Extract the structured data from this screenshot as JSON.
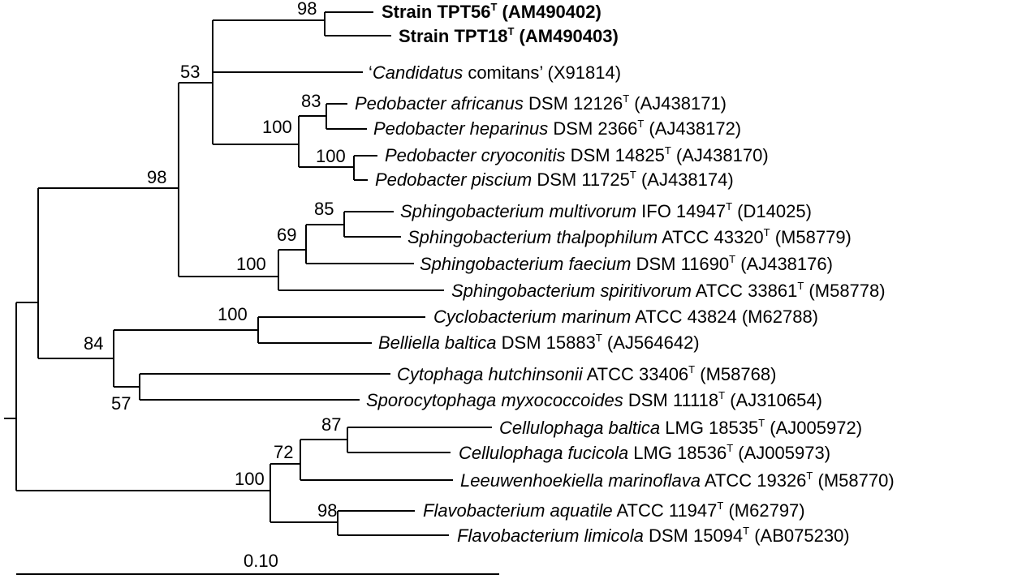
{
  "figure": {
    "scale_bar_label": "0.10",
    "taxa": [
      {
        "id": "tpt56",
        "bold": true,
        "parts": [
          {
            "t": "Strain TPT56"
          },
          {
            "t": "T",
            "sup": true
          },
          {
            "t": " (AM490402)"
          }
        ]
      },
      {
        "id": "tpt18",
        "bold": true,
        "parts": [
          {
            "t": "Strain TPT18"
          },
          {
            "t": "T",
            "sup": true
          },
          {
            "t": " (AM490403)"
          }
        ]
      },
      {
        "id": "comitans",
        "parts": [
          {
            "t": "‘"
          },
          {
            "t": "Candidatus",
            "i": true
          },
          {
            "t": " comitans’ (X91814)"
          }
        ]
      },
      {
        "id": "ped-africanus",
        "parts": [
          {
            "t": "Pedobacter africanus",
            "i": true
          },
          {
            "t": " DSM 12126"
          },
          {
            "t": "T",
            "sup": true
          },
          {
            "t": " (AJ438171)"
          }
        ]
      },
      {
        "id": "ped-heparinus",
        "parts": [
          {
            "t": "Pedobacter heparinus",
            "i": true
          },
          {
            "t": " DSM 2366"
          },
          {
            "t": "T",
            "sup": true
          },
          {
            "t": " (AJ438172)"
          }
        ]
      },
      {
        "id": "ped-cryoconitis",
        "parts": [
          {
            "t": "Pedobacter cryoconitis",
            "i": true
          },
          {
            "t": " DSM 14825"
          },
          {
            "t": "T",
            "sup": true
          },
          {
            "t": " (AJ438170)"
          }
        ]
      },
      {
        "id": "ped-piscium",
        "parts": [
          {
            "t": "Pedobacter piscium",
            "i": true
          },
          {
            "t": " DSM 11725"
          },
          {
            "t": "T",
            "sup": true
          },
          {
            "t": " (AJ438174)"
          }
        ]
      },
      {
        "id": "sph-multivorum",
        "parts": [
          {
            "t": "Sphingobacterium multivorum",
            "i": true
          },
          {
            "t": " IFO 14947"
          },
          {
            "t": "T",
            "sup": true
          },
          {
            "t": " (D14025)"
          }
        ]
      },
      {
        "id": "sph-thalpophilum",
        "parts": [
          {
            "t": "Sphingobacterium thalpophilum",
            "i": true
          },
          {
            "t": " ATCC 43320"
          },
          {
            "t": "T",
            "sup": true
          },
          {
            "t": " (M58779)"
          }
        ]
      },
      {
        "id": "sph-faecium",
        "parts": [
          {
            "t": "Sphingobacterium faecium",
            "i": true
          },
          {
            "t": " DSM 11690"
          },
          {
            "t": "T",
            "sup": true
          },
          {
            "t": " (AJ438176)"
          }
        ]
      },
      {
        "id": "sph-spiritivorum",
        "parts": [
          {
            "t": "Sphingobacterium spiritivorum",
            "i": true
          },
          {
            "t": " ATCC 33861"
          },
          {
            "t": "T",
            "sup": true
          },
          {
            "t": " (M58778)"
          }
        ]
      },
      {
        "id": "cyclo-marinum",
        "parts": [
          {
            "t": "Cyclobacterium marinum",
            "i": true
          },
          {
            "t": " ATCC 43824 (M62788)"
          }
        ]
      },
      {
        "id": "belliella-baltica",
        "parts": [
          {
            "t": "Belliella baltica",
            "i": true
          },
          {
            "t": " DSM 15883"
          },
          {
            "t": "T",
            "sup": true
          },
          {
            "t": " (AJ564642)"
          }
        ]
      },
      {
        "id": "cyto-hutchinsonii",
        "parts": [
          {
            "t": "Cytophaga hutchinsonii",
            "i": true
          },
          {
            "t": " ATCC 33406"
          },
          {
            "t": "T",
            "sup": true
          },
          {
            "t": " (M58768)"
          }
        ]
      },
      {
        "id": "sporo-myxococcoides",
        "parts": [
          {
            "t": "Sporocytophaga myxococcoides",
            "i": true
          },
          {
            "t": " DSM 11118"
          },
          {
            "t": "T",
            "sup": true
          },
          {
            "t": " (AJ310654)"
          }
        ]
      },
      {
        "id": "cell-baltica",
        "parts": [
          {
            "t": "Cellulophaga baltica",
            "i": true
          },
          {
            "t": " LMG 18535"
          },
          {
            "t": "T",
            "sup": true
          },
          {
            "t": " (AJ005972)"
          }
        ]
      },
      {
        "id": "cell-fucicola",
        "parts": [
          {
            "t": "Cellulophaga fucicola",
            "i": true
          },
          {
            "t": " LMG 18536"
          },
          {
            "t": "T",
            "sup": true
          },
          {
            "t": " (AJ005973)"
          }
        ]
      },
      {
        "id": "leeuwenhoekiella",
        "parts": [
          {
            "t": "Leeuwenhoekiella marinoflava",
            "i": true
          },
          {
            "t": " ATCC 19326"
          },
          {
            "t": "T",
            "sup": true
          },
          {
            "t": " (M58770)"
          }
        ]
      },
      {
        "id": "flavo-aquatile",
        "parts": [
          {
            "t": "Flavobacterium aquatile",
            "i": true
          },
          {
            "t": " ATCC 11947"
          },
          {
            "t": "T",
            "sup": true
          },
          {
            "t": " (M62797)"
          }
        ]
      },
      {
        "id": "flavo-limicola",
        "parts": [
          {
            "t": "Flavobacterium limicola",
            "i": true
          },
          {
            "t": " DSM 15094"
          },
          {
            "t": "T",
            "sup": true
          },
          {
            "t": " (AB075230)"
          }
        ]
      }
    ],
    "bootstrap_values": [
      "98",
      "53",
      "83",
      "100",
      "100",
      "98",
      "85",
      "69",
      "100",
      "100",
      "84",
      "57",
      "87",
      "72",
      "100",
      "98"
    ]
  }
}
